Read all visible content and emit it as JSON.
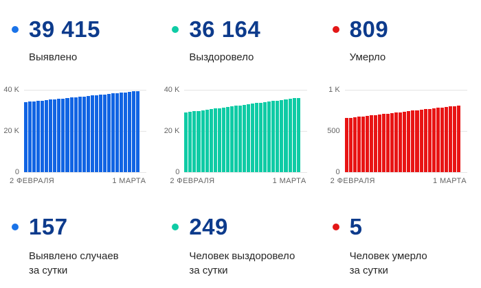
{
  "theme": {
    "background": "#ffffff",
    "value_color": "#0d3b8c",
    "label_color": "#262626",
    "axis_color": "#636363",
    "gridline_color": "#e4e4e4"
  },
  "stats_top": [
    {
      "value": "39 415",
      "label": "Выявлено",
      "dot_color": "#1a73e8"
    },
    {
      "value": "36 164",
      "label": "Выздоровело",
      "dot_color": "#0fcba5"
    },
    {
      "value": "809",
      "label": "Умерло",
      "dot_color": "#e31717"
    }
  ],
  "stats_bottom": [
    {
      "value": "157",
      "label_lines": [
        "Выявлено случаев",
        "за сутки"
      ],
      "dot_color": "#1a73e8"
    },
    {
      "value": "249",
      "label_lines": [
        "Человек выздоровело",
        "за сутки"
      ],
      "dot_color": "#0fcba5"
    },
    {
      "value": "5",
      "label_lines": [
        "Человек умерло",
        "за сутки"
      ],
      "dot_color": "#e31717"
    }
  ],
  "chart_data": [
    {
      "type": "bar",
      "title": "Выявлено",
      "color": "#1164e3",
      "x_start_label": "2 ФЕВРАЛЯ",
      "x_end_label": "1 МАРТА",
      "ytick_labels": [
        "40 K",
        "20 K",
        "0"
      ],
      "ylim": [
        0,
        40000
      ],
      "grid": true,
      "legend": "none",
      "values": [
        34000,
        34201,
        34401,
        34602,
        34802,
        35003,
        35203,
        35404,
        35604,
        35805,
        36006,
        36206,
        36407,
        36607,
        36808,
        37008,
        37209,
        37409,
        37610,
        37810,
        38011,
        38211,
        38412,
        38612,
        38813,
        39014,
        39214,
        39415
      ]
    },
    {
      "type": "bar",
      "title": "Выздоровело",
      "color": "#0fcba5",
      "x_start_label": "2 ФЕВРАЛЯ",
      "x_end_label": "1 МАРТА",
      "ytick_labels": [
        "40 K",
        "20 K",
        "0"
      ],
      "ylim": [
        0,
        40000
      ],
      "grid": true,
      "legend": "none",
      "values": [
        29000,
        29265,
        29531,
        29796,
        30061,
        30327,
        30592,
        30857,
        31123,
        31388,
        31653,
        31919,
        32184,
        32449,
        32715,
        32980,
        33245,
        33511,
        33776,
        34041,
        34307,
        34572,
        34837,
        35103,
        35368,
        35633,
        35899,
        36164
      ]
    },
    {
      "type": "bar",
      "title": "Умерло",
      "color": "#e81414",
      "x_start_label": "2 ФЕВРАЛЯ",
      "x_end_label": "1 МАРТА",
      "ytick_labels": [
        "1 K",
        "500",
        "0"
      ],
      "ylim": [
        0,
        1000
      ],
      "grid": true,
      "legend": "none",
      "values": [
        655,
        661,
        666,
        672,
        678,
        684,
        689,
        695,
        701,
        706,
        712,
        718,
        723,
        729,
        735,
        741,
        746,
        752,
        758,
        763,
        769,
        775,
        780,
        786,
        792,
        798,
        803,
        809
      ]
    }
  ]
}
